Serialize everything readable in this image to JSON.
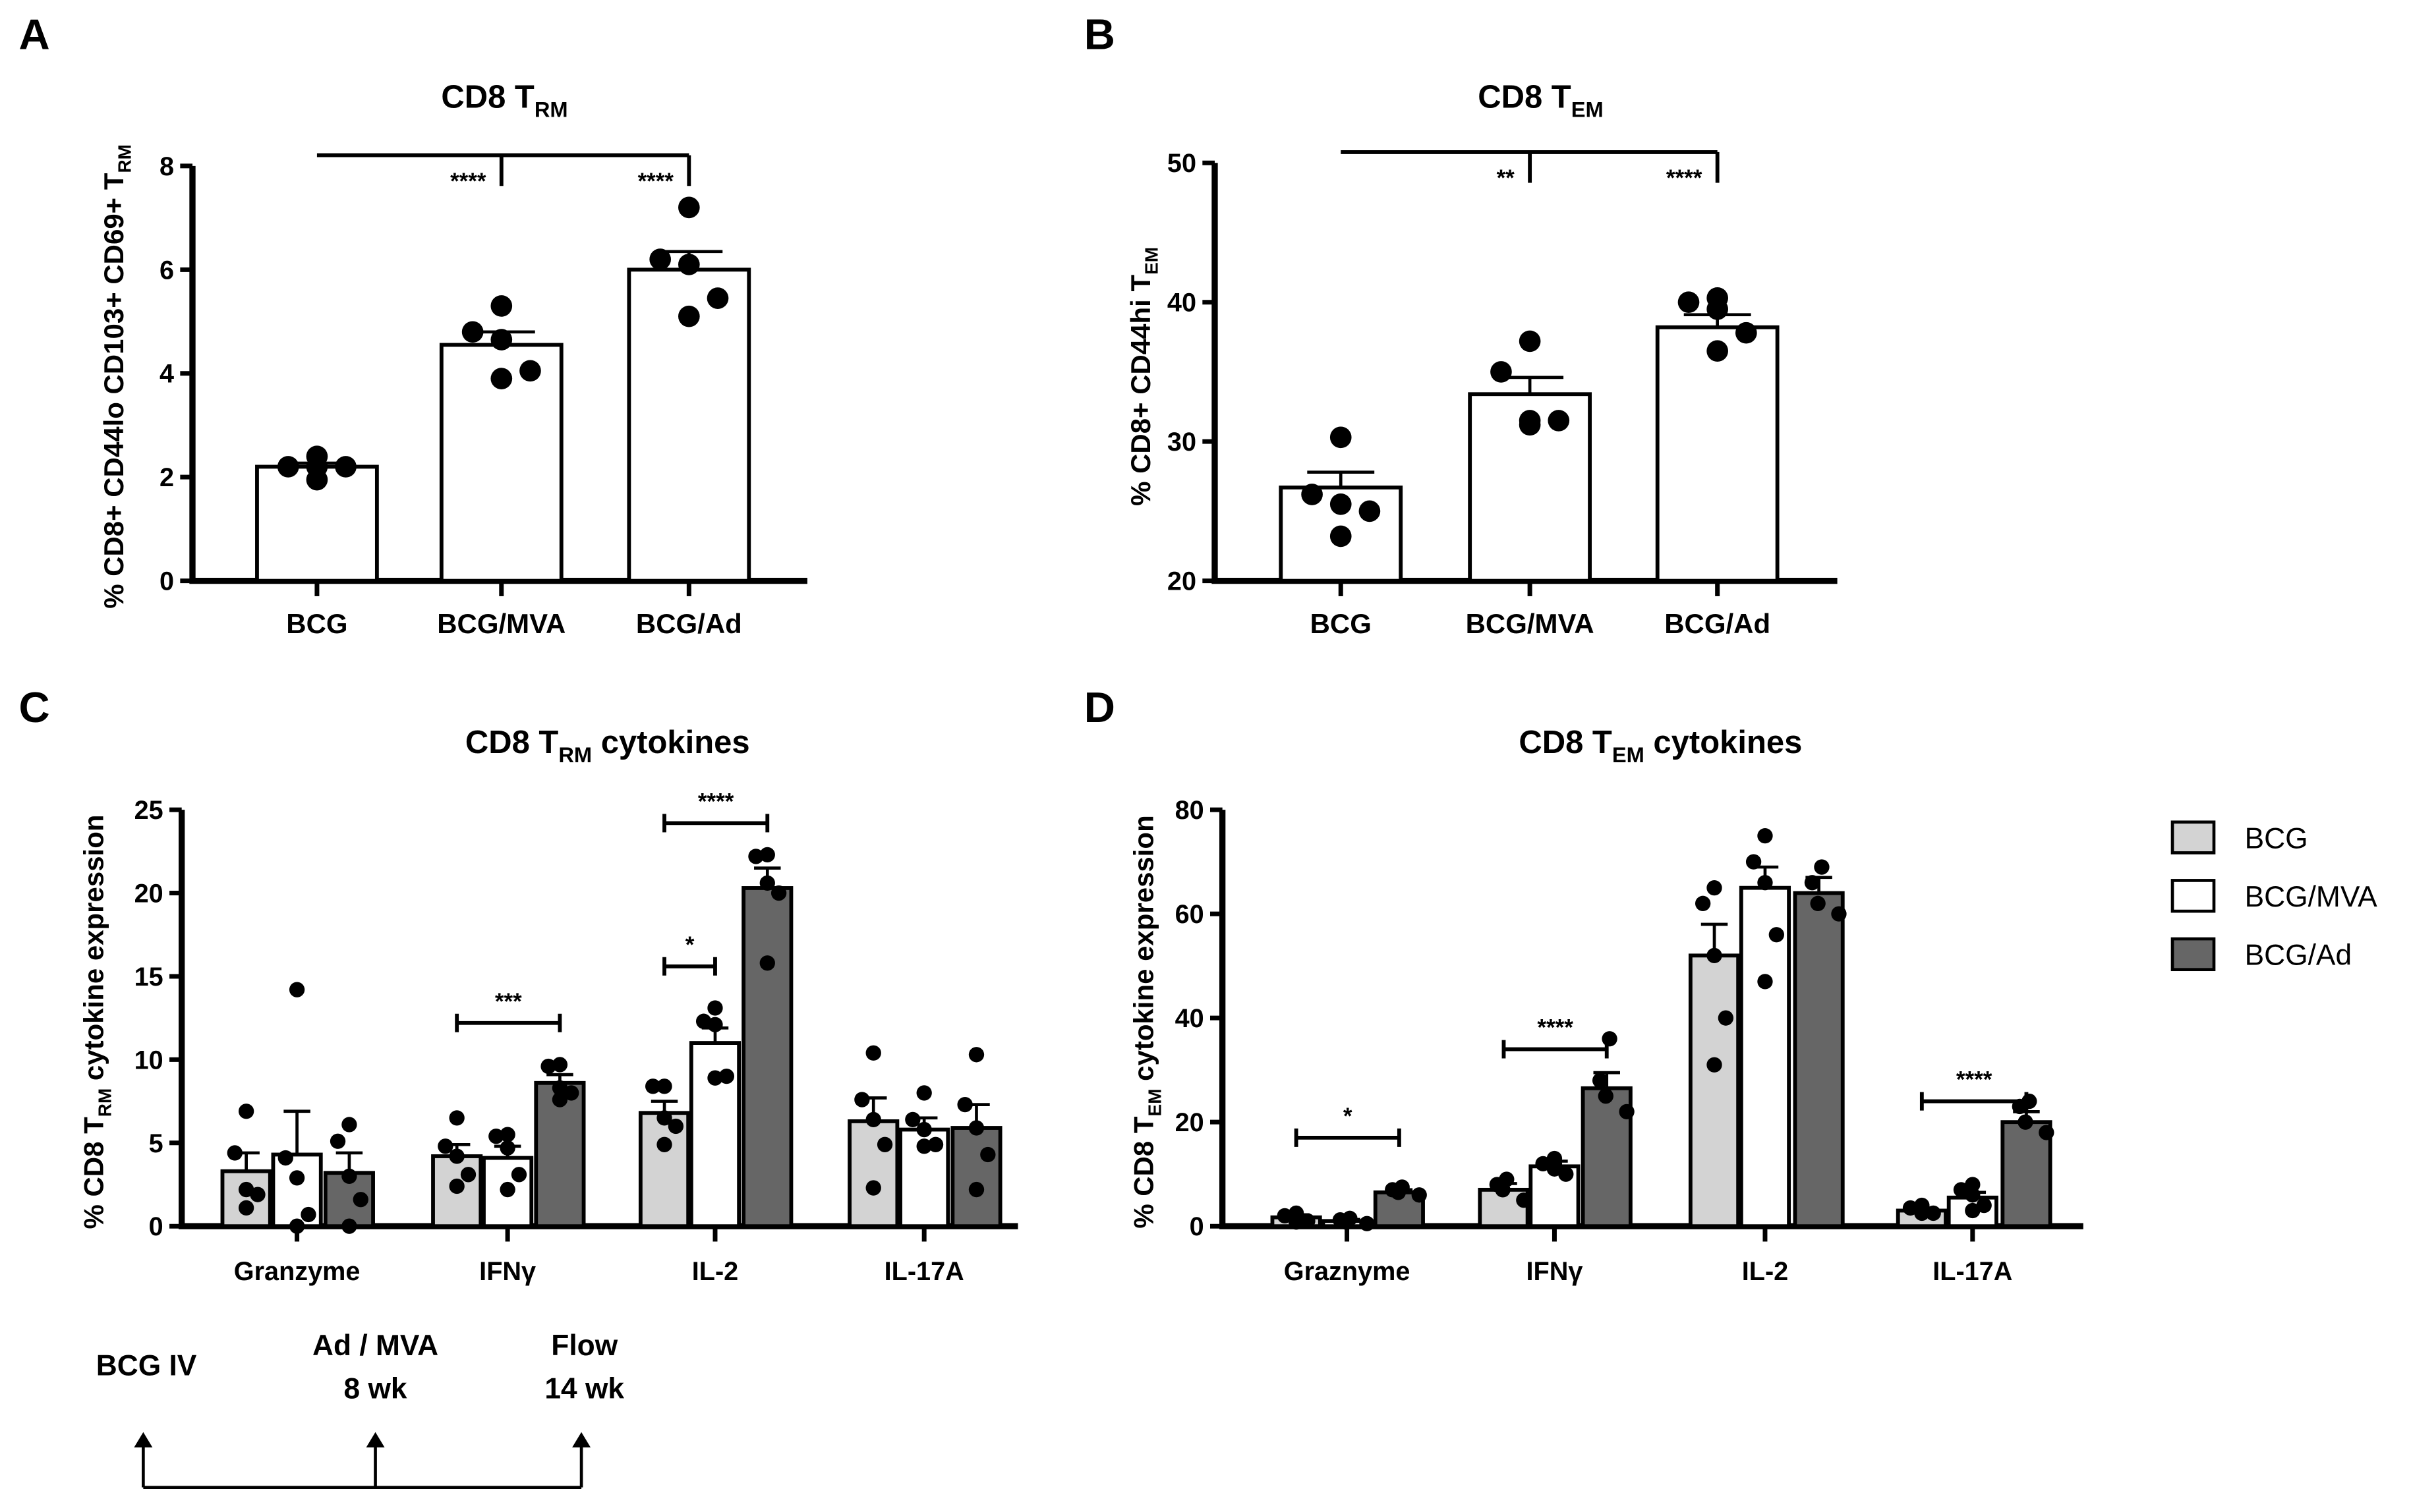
{
  "colors": {
    "BCG": "#d3d3d3",
    "BCG/MVA": "#ffffff",
    "BCG/Ad": "#666666",
    "stroke": "#000000"
  },
  "legend": [
    "BCG",
    "BCG/MVA",
    "BCG/Ad"
  ],
  "timeline": {
    "start": "BCG IV",
    "boost": "Ad / MVA",
    "boost_time": "8 wk",
    "end": "Flow",
    "end_time": "14 wk"
  },
  "chart_data": [
    {
      "panel": "A",
      "type": "bar",
      "title": {
        "main": "CD8 T",
        "sub": "RM",
        "suffix": ""
      },
      "ylabel": {
        "main": "% CD8+ CD44lo CD103+ CD69+ T",
        "sub": "RM",
        "suffix": ""
      },
      "ylim": [
        0,
        8
      ],
      "yticks": [
        0,
        2,
        4,
        6,
        8
      ],
      "categories": [
        "BCG",
        "BCG/MVA",
        "BCG/Ad"
      ],
      "bars": [
        {
          "mean": 2.2,
          "sem": 0.07,
          "points": [
            2.4,
            2.2,
            2.2,
            2.2,
            1.95
          ]
        },
        {
          "mean": 4.55,
          "sem": 0.25,
          "points": [
            5.3,
            4.8,
            4.65,
            4.05,
            3.9
          ]
        },
        {
          "mean": 6.0,
          "sem": 0.35,
          "points": [
            7.2,
            6.2,
            6.1,
            5.45,
            5.1
          ]
        }
      ],
      "significance": [
        {
          "from": 0,
          "to": 1,
          "label": "****"
        },
        {
          "from": 0,
          "to": 2,
          "label": "****"
        }
      ]
    },
    {
      "panel": "B",
      "type": "bar",
      "title": {
        "main": "CD8 T",
        "sub": "EM",
        "suffix": ""
      },
      "ylabel": {
        "main": "% CD8+ CD44hi T",
        "sub": "EM",
        "suffix": ""
      },
      "ylim": [
        20,
        50
      ],
      "yticks": [
        20,
        30,
        40,
        50
      ],
      "categories": [
        "BCG",
        "BCG/MVA",
        "BCG/Ad"
      ],
      "bars": [
        {
          "mean": 26.7,
          "sem": 1.1,
          "points": [
            30.3,
            26.2,
            25.5,
            25.0,
            23.2
          ]
        },
        {
          "mean": 33.4,
          "sem": 1.2,
          "points": [
            37.2,
            35.0,
            31.5,
            31.5,
            31.2
          ]
        },
        {
          "mean": 38.2,
          "sem": 0.9,
          "points": [
            40.3,
            40.0,
            39.5,
            37.8,
            36.5
          ]
        }
      ],
      "significance": [
        {
          "from": 0,
          "to": 1,
          "label": "**"
        },
        {
          "from": 0,
          "to": 2,
          "label": "****"
        }
      ]
    },
    {
      "panel": "C",
      "type": "grouped-bar",
      "title": {
        "main": "CD8 T",
        "sub": "RM",
        "suffix": " cytokines"
      },
      "ylabel": {
        "main": "% CD8 T",
        "sub": "RM",
        "suffix": " cytokine expression"
      },
      "ylim": [
        0,
        25
      ],
      "yticks": [
        0,
        5,
        10,
        15,
        20,
        25
      ],
      "categories": [
        "Granzyme",
        "IFNγ",
        "IL-2",
        "IL-17A"
      ],
      "series": [
        "BCG",
        "BCG/MVA",
        "BCG/Ad"
      ],
      "groups": [
        [
          {
            "mean": 3.3,
            "sem": 1.1,
            "points": [
              6.9,
              4.4,
              2.2,
              1.9,
              1.1
            ]
          },
          {
            "mean": 4.3,
            "sem": 2.6,
            "points": [
              14.2,
              4.1,
              2.9,
              0.7,
              0
            ]
          },
          {
            "mean": 3.2,
            "sem": 1.2,
            "points": [
              6.1,
              5.1,
              3.0,
              1.6,
              0
            ]
          }
        ],
        [
          {
            "mean": 4.2,
            "sem": 0.7,
            "points": [
              6.5,
              4.8,
              4.2,
              3.1,
              2.4
            ]
          },
          {
            "mean": 4.1,
            "sem": 0.7,
            "points": [
              5.5,
              5.4,
              4.7,
              3.1,
              2.2
            ]
          },
          {
            "mean": 8.6,
            "sem": 0.5,
            "points": [
              9.7,
              9.6,
              8.3,
              8.0,
              7.6
            ]
          }
        ],
        [
          {
            "mean": 6.8,
            "sem": 0.7,
            "points": [
              8.4,
              8.4,
              6.5,
              6.0,
              4.9
            ]
          },
          {
            "mean": 11.0,
            "sem": 0.9,
            "points": [
              13.1,
              12.3,
              12.1,
              9.0,
              8.9
            ]
          },
          {
            "mean": 20.3,
            "sem": 1.2,
            "points": [
              22.3,
              22.2,
              20.6,
              20.0,
              15.8
            ]
          }
        ],
        [
          {
            "mean": 6.3,
            "sem": 1.4,
            "points": [
              10.4,
              7.6,
              6.4,
              4.9,
              2.3
            ]
          },
          {
            "mean": 5.8,
            "sem": 0.7,
            "points": [
              8.0,
              6.4,
              5.8,
              4.9,
              4.8
            ]
          },
          {
            "mean": 5.9,
            "sem": 1.4,
            "points": [
              10.3,
              7.3,
              5.9,
              4.3,
              2.2
            ]
          }
        ]
      ],
      "significance": [
        {
          "group": 1,
          "from": 0,
          "to": 2,
          "y": 12.2,
          "label": "***"
        },
        {
          "group": 2,
          "from": 0,
          "to": 1,
          "y": 15.6,
          "label": "*"
        },
        {
          "group": 2,
          "from": 0,
          "to": 2,
          "y": 24.2,
          "label": "****"
        }
      ]
    },
    {
      "panel": "D",
      "type": "grouped-bar",
      "title": {
        "main": "CD8 T",
        "sub": "EM",
        "suffix": " cytokines"
      },
      "ylabel": {
        "main": "% CD8 T",
        "sub": "EM",
        "suffix": " cytokine expression"
      },
      "ylim": [
        0,
        80
      ],
      "yticks": [
        0,
        20,
        40,
        60,
        80
      ],
      "categories": [
        "Graznyme",
        "IFNγ",
        "IL-2",
        "IL-17A"
      ],
      "series": [
        "BCG",
        "BCG/MVA",
        "BCG/Ad"
      ],
      "groups": [
        [
          {
            "mean": 1.7,
            "sem": 0.5,
            "points": [
              2.5,
              2.0,
              1.5,
              1.0,
              0.8
            ]
          },
          {
            "mean": 1.0,
            "sem": 0.3,
            "points": [
              1.5,
              1.2,
              0.8,
              0.5
            ]
          },
          {
            "mean": 6.5,
            "sem": 0.5,
            "points": [
              7.5,
              7,
              6.5,
              6
            ]
          }
        ],
        [
          {
            "mean": 7,
            "sem": 1.2,
            "points": [
              9,
              8,
              7,
              5
            ]
          },
          {
            "mean": 11.5,
            "sem": 1,
            "points": [
              13,
              12,
              11,
              10,
              12
            ]
          },
          {
            "mean": 26.5,
            "sem": 3,
            "points": [
              36,
              28,
              25,
              22
            ]
          }
        ],
        [
          {
            "mean": 52,
            "sem": 6,
            "points": [
              65,
              62,
              52,
              40,
              31
            ]
          },
          {
            "mean": 65,
            "sem": 4,
            "points": [
              75,
              70,
              66,
              56,
              47
            ]
          },
          {
            "mean": 64,
            "sem": 3,
            "points": [
              69,
              66,
              62,
              60
            ]
          }
        ],
        [
          {
            "mean": 3,
            "sem": 0.5,
            "points": [
              4,
              3.5,
              3,
              2.5,
              2.5
            ]
          },
          {
            "mean": 5.5,
            "sem": 1,
            "points": [
              8,
              7,
              6,
              4,
              3
            ]
          },
          {
            "mean": 20,
            "sem": 2,
            "points": [
              24,
              23,
              20,
              18
            ]
          }
        ]
      ],
      "significance": [
        {
          "group": 0,
          "from": 0,
          "to": 2,
          "y": 17,
          "label": "*"
        },
        {
          "group": 1,
          "from": 0,
          "to": 2,
          "y": 34,
          "label": "****"
        },
        {
          "group": 3,
          "from": 0,
          "to": 2,
          "y": 24,
          "label": "****"
        }
      ]
    }
  ]
}
